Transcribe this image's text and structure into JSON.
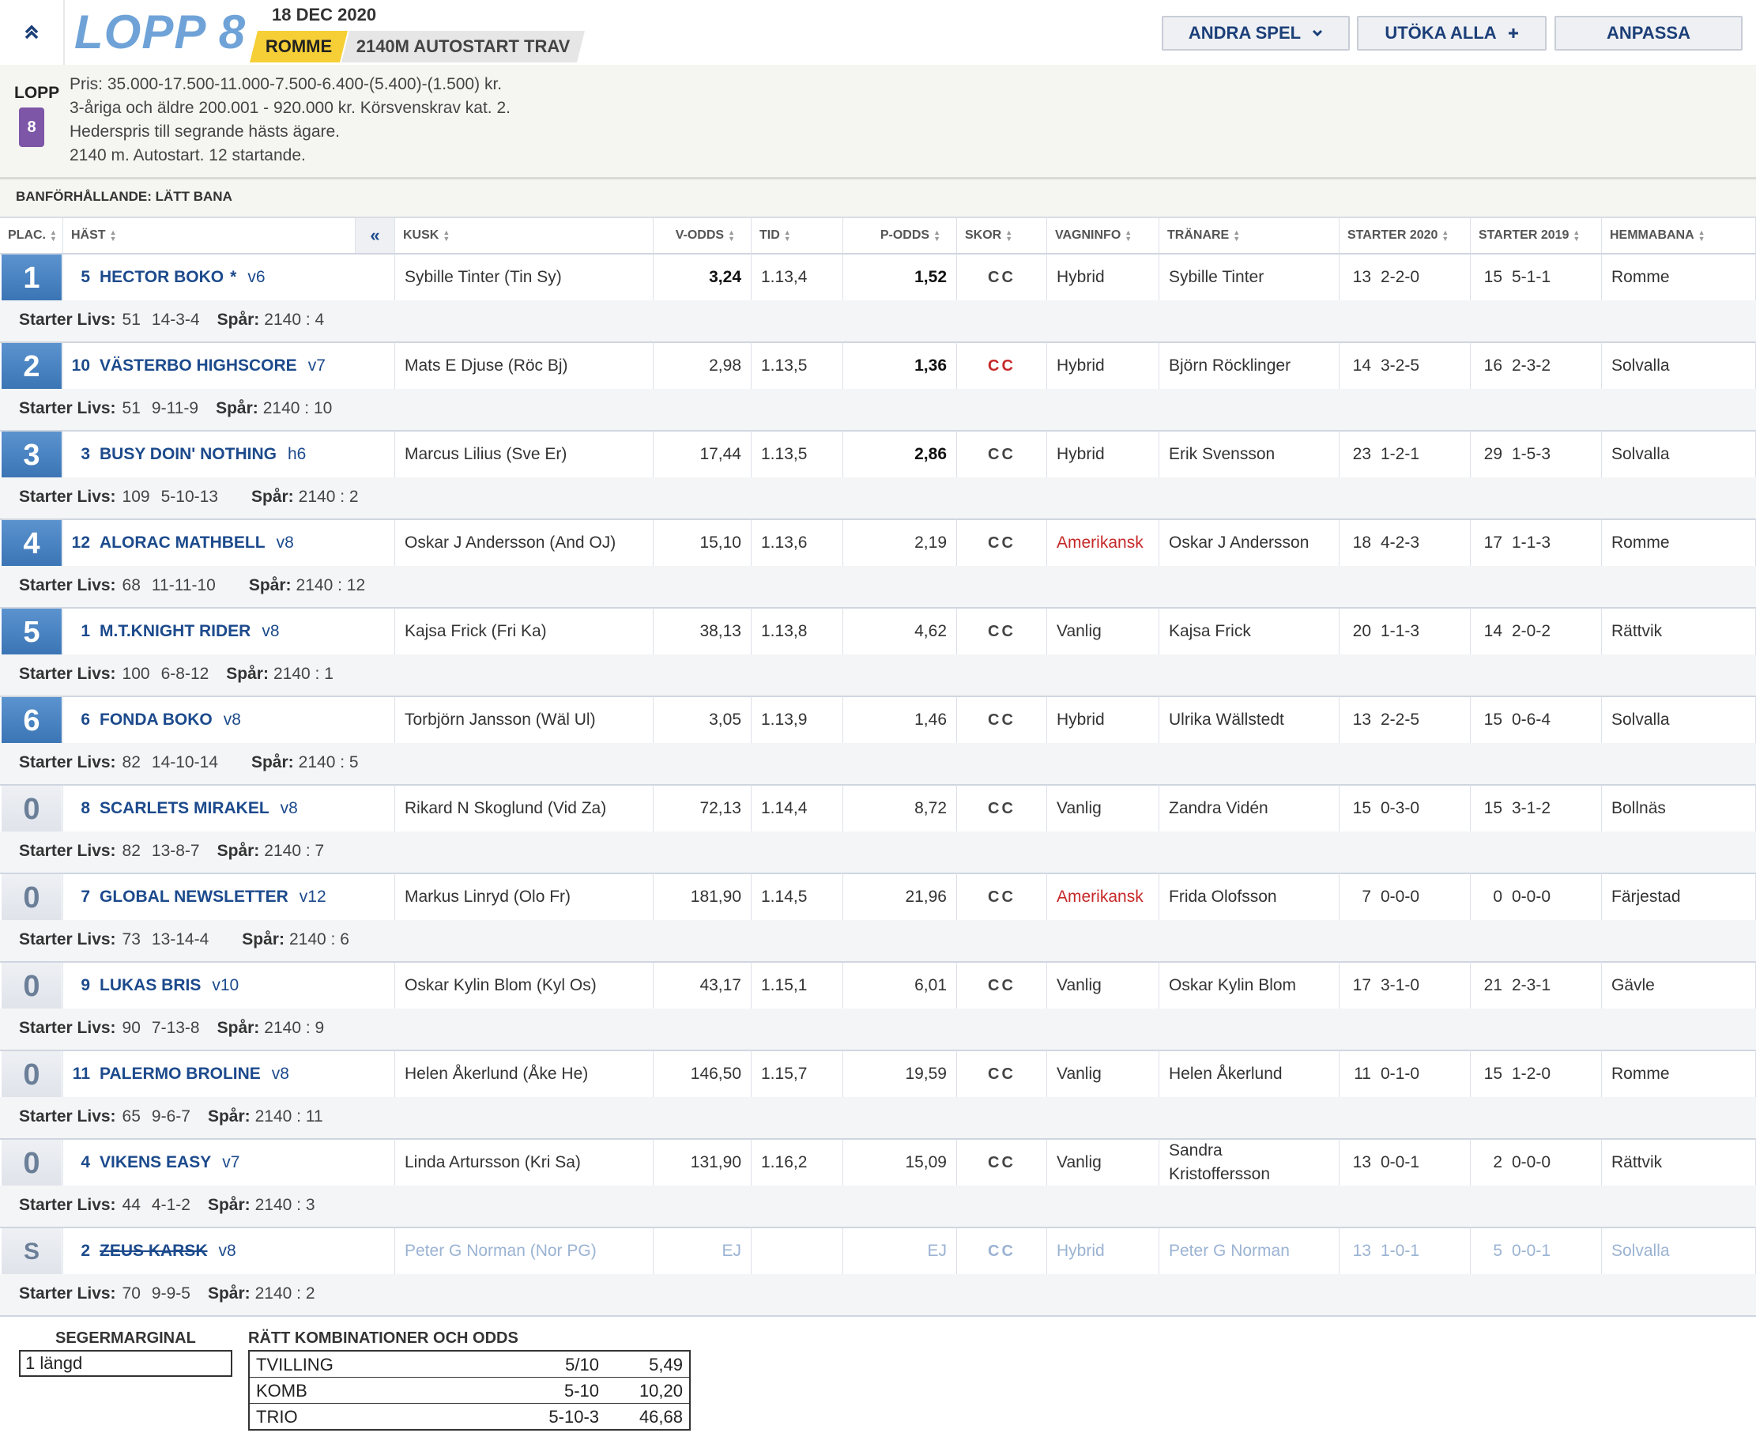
{
  "header": {
    "collapse_icon": "chevron-double-up",
    "race_title": "LOPP 8",
    "date": "18 DEC 2020",
    "track": "ROMME",
    "race_info": "2140M AUTOSTART TRAV",
    "buttons": {
      "andra_spel": "ANDRA SPEL",
      "utoka_alla": "UTÖKA ALLA",
      "anpassa": "ANPASSA"
    }
  },
  "info": {
    "lopp_label": "LOPP",
    "lopp_number": "8",
    "lines": [
      "Pris: 35.000-17.500-11.000-7.500-6.400-(5.400)-(1.500) kr.",
      "3-åriga och äldre 200.001 - 920.000 kr. Körsvenskrav kat. 2.",
      "Hederspris till segrande hästs ägare.",
      "2140 m. Autostart. 12 startande."
    ],
    "track_condition": "BANFÖRHÅLLANDE: LÄTT BANA"
  },
  "table": {
    "headers": {
      "plac": "PLAC.",
      "hast": "HÄST",
      "collapse": "«",
      "kusk": "KUSK",
      "vodds": "V-ODDS",
      "tid": "TID",
      "podds": "P-ODDS",
      "skor": "SKOR",
      "vagninfo": "VAGNINFO",
      "tranare": "TRÄNARE",
      "starter2020": "STARTER 2020",
      "starter2019": "STARTER 2019",
      "hemmabana": "HEMMABANA"
    },
    "sub_labels": {
      "livs": "Starter Livs:",
      "spar": "Spår:"
    },
    "rows": [
      {
        "plac": "1",
        "num": "5",
        "name": "HECTOR BOKO",
        "star": "*",
        "age": "v6",
        "kusk": "Sybille Tinter (Tin Sy)",
        "vodds": "3,24",
        "tid": "1.13,4",
        "podds": "1,52",
        "skor": "CC",
        "vagn": "Hybrid",
        "tranare": "Sybille Tinter",
        "s20n": "13",
        "s20r": "2-2-0",
        "s19n": "15",
        "s19r": "5-1-1",
        "hem": "Romme",
        "livs_n": "51",
        "livs_r": "14-3-4",
        "spar": "2140 : 4"
      },
      {
        "plac": "2",
        "num": "10",
        "name": "VÄSTERBO HIGHSCORE",
        "star": "",
        "age": "v7",
        "kusk": "Mats E Djuse (Röc Bj)",
        "vodds": "2,98",
        "tid": "1.13,5",
        "podds": "1,36",
        "skor": "CC",
        "vagn": "Hybrid",
        "tranare": "Björn Röcklinger",
        "s20n": "14",
        "s20r": "3-2-5",
        "s19n": "16",
        "s19r": "2-3-2",
        "hem": "Solvalla",
        "livs_n": "51",
        "livs_r": "9-11-9",
        "spar": "2140 : 10"
      },
      {
        "plac": "3",
        "num": "3",
        "name": "BUSY DOIN' NOTHING",
        "star": "",
        "age": "h6",
        "kusk": "Marcus Lilius (Sve Er)",
        "vodds": "17,44",
        "tid": "1.13,5",
        "podds": "2,86",
        "skor": "CC",
        "vagn": "Hybrid",
        "tranare": "Erik Svensson",
        "s20n": "23",
        "s20r": "1-2-1",
        "s19n": "29",
        "s19r": "1-5-3",
        "hem": "Solvalla",
        "livs_n": "109",
        "livs_r": "5-10-13",
        "spar": "2140 : 2"
      },
      {
        "plac": "4",
        "num": "12",
        "name": "ALORAC MATHBELL",
        "star": "",
        "age": "v8",
        "kusk": "Oskar J Andersson (And OJ)",
        "vodds": "15,10",
        "tid": "1.13,6",
        "podds": "2,19",
        "skor": "CC",
        "vagn": "Amerikansk",
        "tranare": "Oskar J Andersson",
        "s20n": "18",
        "s20r": "4-2-3",
        "s19n": "17",
        "s19r": "1-1-3",
        "hem": "Romme",
        "livs_n": "68",
        "livs_r": "11-11-10",
        "spar": "2140 : 12"
      },
      {
        "plac": "5",
        "num": "1",
        "name": "M.T.KNIGHT RIDER",
        "star": "",
        "age": "v8",
        "kusk": "Kajsa Frick (Fri Ka)",
        "vodds": "38,13",
        "tid": "1.13,8",
        "podds": "4,62",
        "skor": "CC",
        "vagn": "Vanlig",
        "tranare": "Kajsa Frick",
        "s20n": "20",
        "s20r": "1-1-3",
        "s19n": "14",
        "s19r": "2-0-2",
        "hem": "Rättvik",
        "livs_n": "100",
        "livs_r": "6-8-12",
        "spar": "2140 : 1"
      },
      {
        "plac": "6",
        "num": "6",
        "name": "FONDA BOKO",
        "star": "",
        "age": "v8",
        "kusk": "Torbjörn Jansson (Wäl Ul)",
        "vodds": "3,05",
        "tid": "1.13,9",
        "podds": "1,46",
        "skor": "CC",
        "vagn": "Hybrid",
        "tranare": "Ulrika Wällstedt",
        "s20n": "13",
        "s20r": "2-2-5",
        "s19n": "15",
        "s19r": "0-6-4",
        "hem": "Solvalla",
        "livs_n": "82",
        "livs_r": "14-10-14",
        "spar": "2140 : 5"
      },
      {
        "plac": "0",
        "num": "8",
        "name": "SCARLETS MIRAKEL",
        "star": "",
        "age": "v8",
        "kusk": "Rikard N Skoglund (Vid Za)",
        "vodds": "72,13",
        "tid": "1.14,4",
        "podds": "8,72",
        "skor": "CC",
        "vagn": "Vanlig",
        "tranare": "Zandra Vidén",
        "s20n": "15",
        "s20r": "0-3-0",
        "s19n": "15",
        "s19r": "3-1-2",
        "hem": "Bollnäs",
        "livs_n": "82",
        "livs_r": "13-8-7",
        "spar": "2140 : 7"
      },
      {
        "plac": "0",
        "num": "7",
        "name": "GLOBAL NEWSLETTER",
        "star": "",
        "age": "v12",
        "kusk": "Markus Linryd (Olo Fr)",
        "vodds": "181,90",
        "tid": "1.14,5",
        "podds": "21,96",
        "skor": "CC",
        "vagn": "Amerikansk",
        "tranare": "Frida Olofsson",
        "s20n": "7",
        "s20r": "0-0-0",
        "s19n": "0",
        "s19r": "0-0-0",
        "hem": "Färjestad",
        "livs_n": "73",
        "livs_r": "13-14-4",
        "spar": "2140 : 6"
      },
      {
        "plac": "0",
        "num": "9",
        "name": "LUKAS BRIS",
        "star": "",
        "age": "v10",
        "kusk": "Oskar Kylin Blom (Kyl Os)",
        "vodds": "43,17",
        "tid": "1.15,1",
        "podds": "6,01",
        "skor": "CC",
        "vagn": "Vanlig",
        "tranare": "Oskar Kylin Blom",
        "s20n": "17",
        "s20r": "3-1-0",
        "s19n": "21",
        "s19r": "2-3-1",
        "hem": "Gävle",
        "livs_n": "90",
        "livs_r": "7-13-8",
        "spar": "2140 : 9"
      },
      {
        "plac": "0",
        "num": "11",
        "name": "PALERMO BROLINE",
        "star": "",
        "age": "v8",
        "kusk": "Helen Åkerlund (Åke He)",
        "vodds": "146,50",
        "tid": "1.15,7",
        "podds": "19,59",
        "skor": "CC",
        "vagn": "Vanlig",
        "tranare": "Helen Åkerlund",
        "s20n": "11",
        "s20r": "0-1-0",
        "s19n": "15",
        "s19r": "1-2-0",
        "hem": "Romme",
        "livs_n": "65",
        "livs_r": "9-6-7",
        "spar": "2140 : 11"
      },
      {
        "plac": "0",
        "num": "4",
        "name": "VIKENS EASY",
        "star": "",
        "age": "v7",
        "kusk": "Linda Artursson (Kri Sa)",
        "vodds": "131,90",
        "tid": "1.16,2",
        "podds": "15,09",
        "skor": "CC",
        "vagn": "Vanlig",
        "tranare": "Sandra Kristoffersson",
        "s20n": "13",
        "s20r": "0-0-1",
        "s19n": "2",
        "s19r": "0-0-0",
        "hem": "Rättvik",
        "livs_n": "44",
        "livs_r": "4-1-2",
        "spar": "2140 : 3"
      },
      {
        "plac": "S",
        "num": "2",
        "name": "ZEUS KARSK",
        "star": "",
        "age": "v8",
        "kusk": "Peter G Norman (Nor PG)",
        "vodds": "EJ",
        "tid": "",
        "podds": "EJ",
        "skor": "CC",
        "vagn": "Hybrid",
        "tranare": "Peter G Norman",
        "s20n": "13",
        "s20r": "1-0-1",
        "s19n": "5",
        "s19r": "0-0-1",
        "hem": "Solvalla",
        "livs_n": "70",
        "livs_r": "9-9-5",
        "spar": "2140 : 2"
      }
    ]
  },
  "bottom": {
    "segermarginal_title": "SEGERMARGINAL",
    "segermarginal_value": "1 längd",
    "komb_title": "RÄTT KOMBINATIONER OCH ODDS",
    "komb": [
      {
        "type": "TVILLING",
        "combo": "5/10",
        "odds": "5,49"
      },
      {
        "type": "KOMB",
        "combo": "5-10",
        "odds": "10,20"
      },
      {
        "type": "TRIO",
        "combo": "5-10-3",
        "odds": "46,68"
      }
    ]
  },
  "colors": {
    "accent_blue": "#1c4a8c",
    "place_blue": "#3a74b4",
    "badge_yellow": "#f6cf36",
    "lopp_purple": "#7d56a8",
    "red": "#c62828"
  }
}
